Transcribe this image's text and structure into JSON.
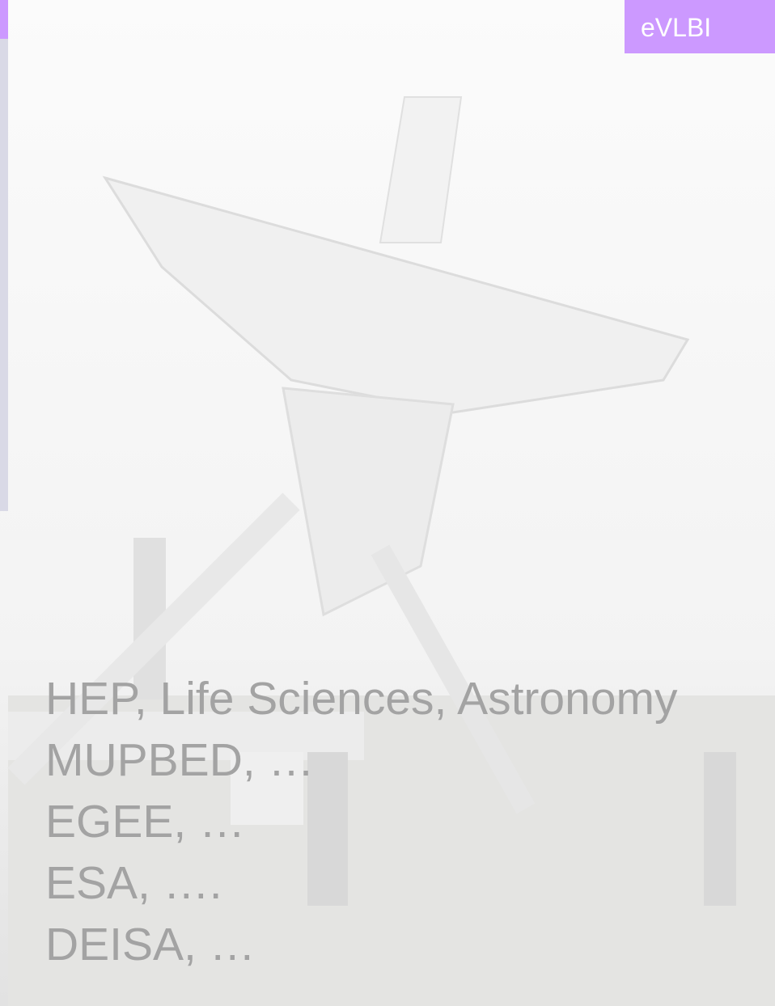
{
  "badge": "eVLBI",
  "lines": [
    "HEP, Life Sciences, Astronomy",
    "MUPBED, …",
    "EGEE, …",
    "ESA, ….",
    "DEISA, …"
  ]
}
